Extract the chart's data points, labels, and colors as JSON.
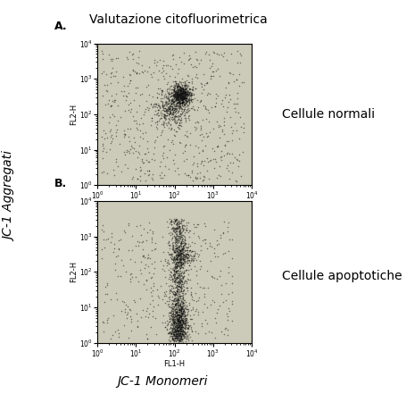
{
  "title": "Valutazione citofluorimetrica",
  "ylabel_left": "JC-1 Aggregati",
  "xlabel_bottom": "JC-1 Monomeri",
  "panel_A_label": "A.",
  "panel_B_label": "B.",
  "label_A": "Cellule normali",
  "label_B": "Cellule apoptotiche",
  "axis_xlabel": "FL1-H",
  "axis_ylabel": "FL2-H",
  "xmin": 1,
  "xmax": 10000,
  "ymin": 1,
  "ymax": 10000,
  "bg_color": "#cccab8",
  "plot_bg_color": "#cccab8",
  "figure_bg": "#ffffff",
  "dot_color": "#111111",
  "dot_alpha": 0.5,
  "dot_size": 1.2,
  "seed_A": 42,
  "seed_B": 99
}
